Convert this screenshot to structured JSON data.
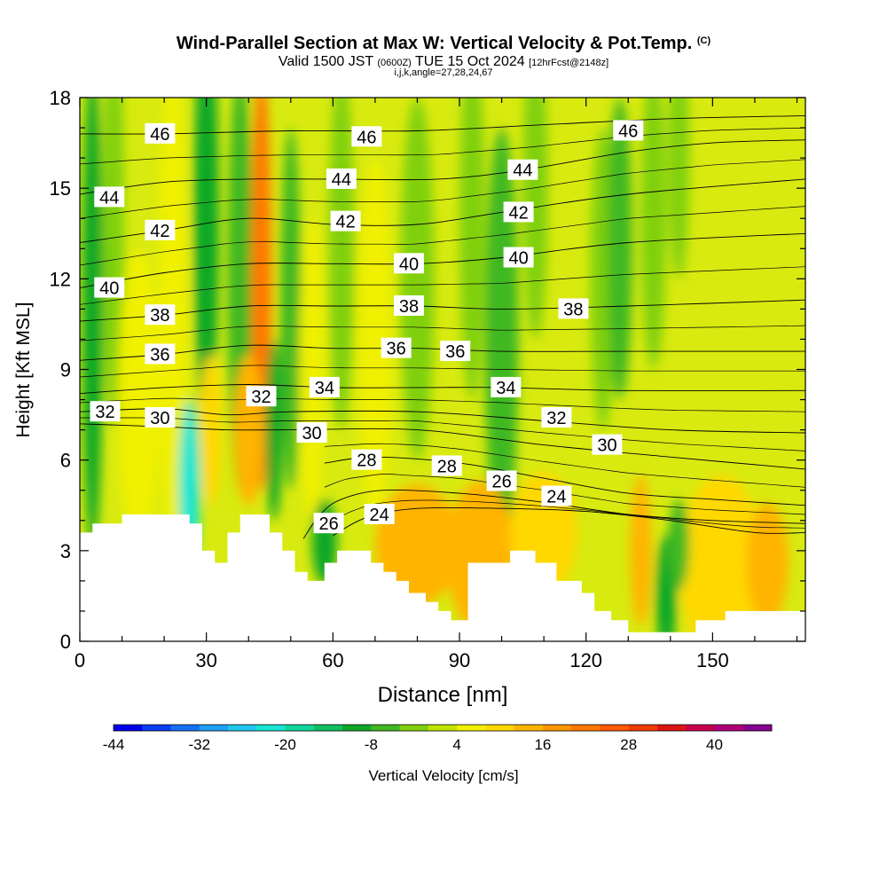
{
  "header": {
    "title": "Wind-Parallel Section at Max W: Vertical Velocity & Pot.Temp.",
    "title_mark": "(C)",
    "valid_pre": "Valid 1500 JST",
    "valid_utc": "(0600Z)",
    "valid_post": "TUE 15 Oct 2024",
    "forecast": "[12hrFcst@2148z]",
    "indices": "i,j,k,angle=27,28,24,67"
  },
  "chart_data": {
    "type": "heatmap",
    "xlabel": "Distance [nm]",
    "ylabel": "Height [Kft MSL]",
    "xlim": [
      0,
      172
    ],
    "ylim": [
      0,
      18
    ],
    "x_ticks": [
      0,
      30,
      60,
      90,
      120,
      150
    ],
    "y_ticks": [
      0,
      3,
      6,
      9,
      12,
      15,
      18
    ],
    "colorbar": {
      "label": "Vertical Velocity [cm/s]",
      "tick_values": [
        -44,
        -32,
        -20,
        -8,
        4,
        16,
        28,
        40
      ],
      "min": -44,
      "max": 48,
      "step": 4,
      "colors": [
        "#0000ee",
        "#0a3cf5",
        "#1470f5",
        "#1ea0f5",
        "#20c8f0",
        "#16e6d2",
        "#10d69a",
        "#10c060",
        "#10a828",
        "#40b820",
        "#80d010",
        "#c0e400",
        "#f0f000",
        "#ffd800",
        "#ffb400",
        "#ff9600",
        "#ff7800",
        "#ff5a00",
        "#f03c00",
        "#e01414",
        "#c80050",
        "#b00078",
        "#880090"
      ]
    },
    "potential_temperature_contours": [
      {
        "label": "46",
        "points": [
          [
            0,
            16.8
          ],
          [
            20,
            16.8
          ],
          [
            50,
            16.9
          ],
          [
            80,
            16.9
          ],
          [
            110,
            17.1
          ],
          [
            140,
            17.3
          ],
          [
            172,
            17.4
          ]
        ]
      },
      {
        "label": "44",
        "points": [
          [
            0,
            14.8
          ],
          [
            20,
            15.2
          ],
          [
            40,
            15.3
          ],
          [
            60,
            15.3
          ],
          [
            85,
            15.3
          ],
          [
            105,
            15.6
          ],
          [
            130,
            16.2
          ],
          [
            150,
            16.5
          ],
          [
            172,
            16.6
          ]
        ]
      },
      {
        "label": "42",
        "points": [
          [
            0,
            13.2
          ],
          [
            20,
            13.6
          ],
          [
            40,
            14.0
          ],
          [
            60,
            13.8
          ],
          [
            80,
            13.8
          ],
          [
            100,
            14.2
          ],
          [
            130,
            14.8
          ],
          [
            172,
            15.3
          ]
        ]
      },
      {
        "label": "40",
        "points": [
          [
            0,
            11.7
          ],
          [
            20,
            12.2
          ],
          [
            40,
            12.5
          ],
          [
            60,
            12.5
          ],
          [
            80,
            12.5
          ],
          [
            100,
            12.7
          ],
          [
            130,
            13.2
          ],
          [
            172,
            13.5
          ]
        ]
      },
      {
        "label": "38",
        "points": [
          [
            0,
            10.6
          ],
          [
            20,
            10.8
          ],
          [
            40,
            11.1
          ],
          [
            60,
            11.1
          ],
          [
            80,
            11.1
          ],
          [
            100,
            11.0
          ],
          [
            130,
            11.1
          ],
          [
            172,
            11.3
          ]
        ]
      },
      {
        "label": "36",
        "points": [
          [
            0,
            9.3
          ],
          [
            20,
            9.5
          ],
          [
            40,
            9.8
          ],
          [
            60,
            9.7
          ],
          [
            80,
            9.7
          ],
          [
            100,
            9.6
          ],
          [
            130,
            9.6
          ],
          [
            172,
            9.6
          ]
        ]
      },
      {
        "label": "34",
        "points": [
          [
            0,
            8.2
          ],
          [
            20,
            8.4
          ],
          [
            40,
            8.5
          ],
          [
            60,
            8.4
          ],
          [
            80,
            8.4
          ],
          [
            100,
            8.4
          ],
          [
            130,
            8.3
          ],
          [
            172,
            8.3
          ]
        ]
      },
      {
        "label": "32",
        "points": [
          [
            0,
            7.6
          ],
          [
            20,
            7.7
          ],
          [
            35,
            7.5
          ],
          [
            50,
            7.6
          ],
          [
            80,
            7.6
          ],
          [
            110,
            7.3
          ],
          [
            140,
            7.0
          ],
          [
            172,
            6.9
          ]
        ]
      },
      {
        "label": "30",
        "points": [
          [
            0,
            7.2
          ],
          [
            20,
            7.1
          ],
          [
            35,
            7.0
          ],
          [
            50,
            7.0
          ],
          [
            80,
            7.0
          ],
          [
            110,
            6.5
          ],
          [
            140,
            6.1
          ],
          [
            172,
            5.7
          ]
        ]
      },
      {
        "label": "28",
        "points": [
          [
            58,
            5.9
          ],
          [
            70,
            6.1
          ],
          [
            90,
            5.9
          ],
          [
            110,
            5.4
          ],
          [
            130,
            4.9
          ],
          [
            150,
            4.7
          ],
          [
            172,
            4.5
          ]
        ]
      },
      {
        "label": "26",
        "points": [
          [
            53,
            3.4
          ],
          [
            57,
            4.2
          ],
          [
            62,
            4.7
          ],
          [
            72,
            5.0
          ],
          [
            90,
            4.9
          ],
          [
            110,
            4.6
          ],
          [
            130,
            4.2
          ],
          [
            150,
            4.0
          ],
          [
            172,
            3.9
          ]
        ]
      },
      {
        "label": "24",
        "points": [
          [
            60,
            3.5
          ],
          [
            68,
            4.1
          ],
          [
            80,
            4.4
          ],
          [
            100,
            4.4
          ],
          [
            120,
            4.3
          ],
          [
            140,
            4.0
          ],
          [
            160,
            3.6
          ],
          [
            172,
            3.6
          ]
        ]
      }
    ],
    "contour_labels": [
      {
        "text": "46",
        "x": 19,
        "y": 16.8
      },
      {
        "text": "46",
        "x": 68,
        "y": 16.7
      },
      {
        "text": "46",
        "x": 130,
        "y": 16.9
      },
      {
        "text": "44",
        "x": 7,
        "y": 14.7
      },
      {
        "text": "44",
        "x": 62,
        "y": 15.3
      },
      {
        "text": "44",
        "x": 105,
        "y": 15.6
      },
      {
        "text": "42",
        "x": 19,
        "y": 13.6
      },
      {
        "text": "42",
        "x": 63,
        "y": 13.9
      },
      {
        "text": "42",
        "x": 104,
        "y": 14.2
      },
      {
        "text": "40",
        "x": 7,
        "y": 11.7
      },
      {
        "text": "40",
        "x": 78,
        "y": 12.5
      },
      {
        "text": "40",
        "x": 104,
        "y": 12.7
      },
      {
        "text": "38",
        "x": 19,
        "y": 10.8
      },
      {
        "text": "38",
        "x": 78,
        "y": 11.1
      },
      {
        "text": "38",
        "x": 117,
        "y": 11.0
      },
      {
        "text": "36",
        "x": 19,
        "y": 9.5
      },
      {
        "text": "36",
        "x": 75,
        "y": 9.7
      },
      {
        "text": "36",
        "x": 89,
        "y": 9.6
      },
      {
        "text": "34",
        "x": 58,
        "y": 8.4
      },
      {
        "text": "34",
        "x": 101,
        "y": 8.4
      },
      {
        "text": "32",
        "x": 6,
        "y": 7.6
      },
      {
        "text": "32",
        "x": 43,
        "y": 8.1
      },
      {
        "text": "32",
        "x": 113,
        "y": 7.4
      },
      {
        "text": "30",
        "x": 19,
        "y": 7.4
      },
      {
        "text": "30",
        "x": 55,
        "y": 6.9
      },
      {
        "text": "30",
        "x": 125,
        "y": 6.5
      },
      {
        "text": "28",
        "x": 68,
        "y": 6.0
      },
      {
        "text": "28",
        "x": 87,
        "y": 5.8
      },
      {
        "text": "26",
        "x": 59,
        "y": 3.9
      },
      {
        "text": "26",
        "x": 100,
        "y": 5.3
      },
      {
        "text": "24",
        "x": 71,
        "y": 4.2
      },
      {
        "text": "24",
        "x": 113,
        "y": 4.8
      }
    ],
    "terrain_profile": [
      [
        0,
        3.6
      ],
      [
        3,
        3.6
      ],
      [
        3,
        3.9
      ],
      [
        10,
        3.9
      ],
      [
        10,
        4.2
      ],
      [
        26,
        4.2
      ],
      [
        26,
        3.9
      ],
      [
        29,
        3.9
      ],
      [
        29,
        3.0
      ],
      [
        32,
        3.0
      ],
      [
        32,
        2.6
      ],
      [
        35,
        2.6
      ],
      [
        35,
        3.6
      ],
      [
        38,
        3.6
      ],
      [
        38,
        4.2
      ],
      [
        45,
        4.2
      ],
      [
        45,
        3.6
      ],
      [
        48,
        3.6
      ],
      [
        48,
        3.0
      ],
      [
        51,
        3.0
      ],
      [
        51,
        2.3
      ],
      [
        54,
        2.3
      ],
      [
        54,
        2.0
      ],
      [
        58,
        2.0
      ],
      [
        58,
        2.6
      ],
      [
        61,
        2.6
      ],
      [
        61,
        3.0
      ],
      [
        69,
        3.0
      ],
      [
        69,
        2.6
      ],
      [
        72,
        2.6
      ],
      [
        72,
        2.3
      ],
      [
        75,
        2.3
      ],
      [
        75,
        2.0
      ],
      [
        78,
        2.0
      ],
      [
        78,
        1.6
      ],
      [
        82,
        1.6
      ],
      [
        82,
        1.3
      ],
      [
        85,
        1.3
      ],
      [
        85,
        1.0
      ],
      [
        88,
        1.0
      ],
      [
        88,
        0.7
      ],
      [
        92,
        0.7
      ],
      [
        92,
        2.6
      ],
      [
        102,
        2.6
      ],
      [
        102,
        3.0
      ],
      [
        108,
        3.0
      ],
      [
        108,
        2.6
      ],
      [
        113,
        2.6
      ],
      [
        113,
        2.0
      ],
      [
        119,
        2.0
      ],
      [
        119,
        1.6
      ],
      [
        122,
        1.6
      ],
      [
        122,
        1.0
      ],
      [
        126,
        1.0
      ],
      [
        126,
        0.7
      ],
      [
        130,
        0.7
      ],
      [
        130,
        0.3
      ],
      [
        146,
        0.3
      ],
      [
        146,
        0.7
      ],
      [
        153,
        0.7
      ],
      [
        153,
        1.0
      ],
      [
        172,
        1.0
      ],
      [
        172,
        0
      ],
      [
        0,
        0
      ]
    ],
    "w_features": [
      {
        "x": 3,
        "y": 11,
        "w": 2.5,
        "h": 8,
        "value": -10
      },
      {
        "x": 8,
        "y": 14,
        "w": 2.5,
        "h": 7,
        "value": -4
      },
      {
        "x": 14,
        "y": 8,
        "w": 5,
        "h": 5,
        "value": 6
      },
      {
        "x": 22,
        "y": 11,
        "w": 3.5,
        "h": 8,
        "value": 4
      },
      {
        "x": 26,
        "y": 5.2,
        "w": 2.5,
        "h": 2.8,
        "value": -24
      },
      {
        "x": 30,
        "y": 14,
        "w": 3,
        "h": 7,
        "value": -10
      },
      {
        "x": 31,
        "y": 7,
        "w": 2.5,
        "h": 2.5,
        "value": 10
      },
      {
        "x": 38,
        "y": 12,
        "w": 3,
        "h": 7,
        "value": -8
      },
      {
        "x": 43,
        "y": 12,
        "w": 2.4,
        "h": 7,
        "value": 20
      },
      {
        "x": 46,
        "y": 7,
        "w": 2,
        "h": 3,
        "value": -12
      },
      {
        "x": 50,
        "y": 11,
        "w": 2.5,
        "h": 6,
        "value": -8
      },
      {
        "x": 55,
        "y": 9,
        "w": 3,
        "h": 5,
        "value": 4
      },
      {
        "x": 62,
        "y": 13,
        "w": 3,
        "h": 6,
        "value": -4
      },
      {
        "x": 70,
        "y": 10,
        "w": 4,
        "h": 6,
        "value": 4
      },
      {
        "x": 80,
        "y": 12,
        "w": 4,
        "h": 6,
        "value": -4
      },
      {
        "x": 93,
        "y": 14,
        "w": 3,
        "h": 6,
        "value": -4
      },
      {
        "x": 100,
        "y": 10,
        "w": 4,
        "h": 7,
        "value": -6
      },
      {
        "x": 108,
        "y": 15,
        "w": 3,
        "h": 5,
        "value": -4
      },
      {
        "x": 124,
        "y": 12,
        "w": 3,
        "h": 5,
        "value": -4
      },
      {
        "x": 128,
        "y": 13,
        "w": 3,
        "h": 5,
        "value": -8
      },
      {
        "x": 136,
        "y": 14,
        "w": 3,
        "h": 5,
        "value": -4
      },
      {
        "x": 142,
        "y": 16,
        "w": 2.5,
        "h": 4,
        "value": -4
      },
      {
        "x": 80,
        "y": 3.2,
        "w": 10,
        "h": 2,
        "value": 12
      },
      {
        "x": 95,
        "y": 2.8,
        "w": 8,
        "h": 2.5,
        "value": 12
      },
      {
        "x": 110,
        "y": 3.6,
        "w": 8,
        "h": 2,
        "value": 8
      },
      {
        "x": 152,
        "y": 2.5,
        "w": 10,
        "h": 3,
        "value": 8
      },
      {
        "x": 163,
        "y": 2.6,
        "w": 5,
        "h": 2,
        "value": 12
      },
      {
        "x": 139,
        "y": 1.5,
        "w": 2.5,
        "h": 2,
        "value": -10
      },
      {
        "x": 142,
        "y": 3.2,
        "w": 2.5,
        "h": 1.5,
        "value": -8
      },
      {
        "x": 133,
        "y": 3,
        "w": 2.5,
        "h": 2.5,
        "value": 12
      },
      {
        "x": 58,
        "y": 3.3,
        "w": 3,
        "h": 1.4,
        "value": -10
      },
      {
        "x": 40,
        "y": 7,
        "w": 3.5,
        "h": 2.5,
        "value": 12
      }
    ]
  }
}
